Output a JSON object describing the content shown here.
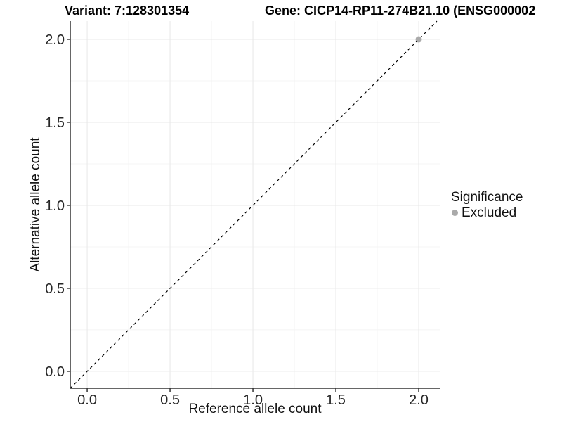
{
  "titles": {
    "variant": "Variant: 7:128301354",
    "gene": "Gene: CICP14-RP11-274B21.10 (ENSG000002"
  },
  "legend": {
    "title": "Significance",
    "entries": [
      {
        "label": "Excluded",
        "color": "#aaaaaa"
      }
    ]
  },
  "chart_data": {
    "type": "scatter",
    "title_left": "Variant: 7:128301354",
    "title_right": "Gene: CICP14-RP11-274B21.10 (ENSG000002",
    "xlabel": "Reference allele count",
    "ylabel": "Alternative allele count",
    "xlim": [
      -0.102,
      2.127
    ],
    "ylim": [
      -0.102,
      2.11
    ],
    "xticks": [
      0.0,
      0.5,
      1.0,
      1.5,
      2.0
    ],
    "yticks": [
      0.0,
      0.5,
      1.0,
      1.5,
      2.0
    ],
    "x_minor_ticks": [
      0.25,
      0.75,
      1.25,
      1.75
    ],
    "y_minor_ticks": [
      0.25,
      0.75,
      1.25,
      1.75
    ],
    "tick_decimals": 1,
    "grid": true,
    "legend_position": "right",
    "series": [
      {
        "name": "Excluded",
        "color": "#aaaaaa",
        "points": [
          {
            "x": 2.0,
            "y": 2.0
          }
        ]
      }
    ],
    "identity_line": {
      "slope": 1,
      "intercept": 0,
      "style": "dashed",
      "color": "#000000"
    },
    "colors": {
      "grid_major": "#e8e8e8",
      "grid_minor": "#f4f4f4",
      "axis_line": "#333333",
      "tick_mark": "#333333",
      "tick_text": "#262626",
      "point": "#aaaaaa"
    }
  }
}
